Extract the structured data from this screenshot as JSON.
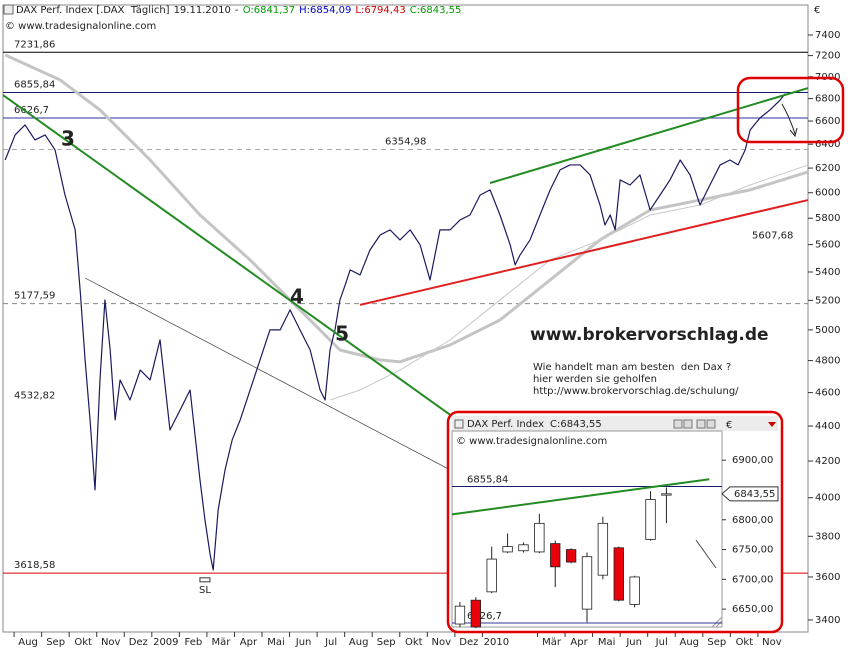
{
  "chart_data": [
    {
      "type": "line",
      "title": "DAX Perf. Index [.DAX  Täglich]",
      "date": "19.11.2010",
      "separator": "-",
      "open": "O:6841,37",
      "high": "H:6854,09",
      "low": "L:6794,43",
      "close": "C:6843,55",
      "source": "© www.tradesignalonline.com",
      "currency": "€",
      "log": true,
      "grid": false,
      "ylim": [
        3346,
        7701
      ],
      "yticks": [
        3400,
        3600,
        3800,
        4000,
        4200,
        4400,
        4600,
        4800,
        5000,
        5200,
        5400,
        5600,
        5800,
        6000,
        6200,
        6400,
        6600,
        6800,
        7000,
        7200,
        7400
      ],
      "xlim": [
        -0.91,
        28.31
      ],
      "xticks": [
        {
          "value": 0,
          "label": "Aug"
        },
        {
          "value": 1,
          "label": "Sep"
        },
        {
          "value": 2,
          "label": "Okt"
        },
        {
          "value": 3,
          "label": "Nov"
        },
        {
          "value": 4,
          "label": "Dez"
        },
        {
          "value": 5,
          "label": "2009"
        },
        {
          "value": 6,
          "label": "Feb"
        },
        {
          "value": 7,
          "label": "Mär"
        },
        {
          "value": 8,
          "label": "Apr"
        },
        {
          "value": 9,
          "label": "Mai"
        },
        {
          "value": 10,
          "label": "Jun"
        },
        {
          "value": 11,
          "label": "Jul"
        },
        {
          "value": 12,
          "label": "Aug"
        },
        {
          "value": 13,
          "label": "Sep"
        },
        {
          "value": 14,
          "label": "Okt"
        },
        {
          "value": 15,
          "label": "Nov"
        },
        {
          "value": 16,
          "label": "Dez"
        },
        {
          "value": 17,
          "label": "2010"
        },
        {
          "value": 19,
          "label": "Mär"
        },
        {
          "value": 20,
          "label": "Apr"
        },
        {
          "value": 21,
          "label": "Mai"
        },
        {
          "value": 22,
          "label": "Jun"
        },
        {
          "value": 23,
          "label": "Jul"
        },
        {
          "value": 24,
          "label": "Aug"
        },
        {
          "value": 25,
          "label": "Sep"
        },
        {
          "value": 26,
          "label": "Okt"
        },
        {
          "value": 27,
          "label": "Nov"
        }
      ],
      "series": [
        {
          "color": "#1a1a60",
          "width": 1.2,
          "x": [
            -0.83,
            -0.47,
            -0.11,
            0.25,
            0.62,
            0.98,
            1.34,
            1.71,
            1.89,
            2.07,
            2.25,
            2.43,
            2.61,
            2.79,
            2.98,
            3.16,
            3.34,
            3.7,
            4.07,
            4.43,
            4.79,
            5.15,
            5.52,
            5.88,
            6.24,
            6.42,
            6.61,
            6.72,
            6.9,
            7.15,
            7.41,
            7.7,
            8.06,
            8.42,
            8.78,
            9.15,
            9.51,
            9.87,
            10.24,
            10.6,
            10.78,
            10.96,
            11.14,
            11.32,
            11.51,
            11.69,
            12.05,
            12.41,
            12.78,
            13.14,
            13.5,
            13.87,
            14.23,
            14.59,
            14.95,
            15.32,
            15.68,
            16.04,
            16.41,
            16.77,
            17.13,
            17.5,
            17.68,
            17.86,
            18.22,
            18.58,
            18.95,
            19.31,
            19.67,
            20.04,
            20.4,
            20.76,
            20.94,
            21.13,
            21.31,
            21.49,
            21.85,
            22.21,
            22.58,
            22.94,
            23.3,
            23.67,
            24.03,
            24.39,
            24.75,
            25.12,
            25.48,
            25.77,
            26.03,
            26.21,
            26.57,
            26.93,
            27.3,
            27.48
          ],
          "values": [
            6267,
            6479,
            6566,
            6436,
            6479,
            6351,
            5982,
            5711,
            5272,
            4804,
            4436,
            4042,
            4678,
            5203,
            4868,
            4436,
            4678,
            4555,
            4740,
            4678,
            4934,
            4377,
            4495,
            4616,
            4096,
            3884,
            3708,
            3634,
            3936,
            4151,
            4320,
            4436,
            4616,
            4804,
            5000,
            5000,
            5135,
            5000,
            4868,
            4616,
            4555,
            4868,
            5000,
            5203,
            5307,
            5415,
            5379,
            5560,
            5672,
            5711,
            5635,
            5711,
            5598,
            5343,
            5711,
            5711,
            5787,
            5825,
            5982,
            6023,
            5825,
            5598,
            5451,
            5524,
            5635,
            5825,
            6023,
            6185,
            6226,
            6226,
            6144,
            5903,
            5748,
            5825,
            5711,
            6103,
            6062,
            6144,
            5864,
            5982,
            6103,
            6267,
            6144,
            5903,
            6062,
            6226,
            6267,
            6226,
            6351,
            6522,
            6628,
            6698,
            6787,
            6844
          ]
        },
        {
          "color": "#c4c4c4",
          "width": 3,
          "x": [
            -0.83,
            1.16,
            2.61,
            4.43,
            6.24,
            8.06,
            9.87,
            11.32,
            12.78,
            13.5,
            15.32,
            17.13,
            18.95,
            20.76,
            22.58,
            24.39,
            26.21,
            28.31
          ],
          "values": [
            7206,
            6971,
            6698,
            6267,
            5825,
            5487,
            5135,
            4868,
            4804,
            4792,
            4901,
            5066,
            5343,
            5635,
            5864,
            5942,
            6023,
            6168
          ]
        },
        {
          "color": "#c8c8c8",
          "width": 1,
          "x": [
            10.96,
            12.05,
            13.5,
            15.32,
            17.13,
            18.95,
            20.76,
            22.58,
            24.39,
            26.21,
            28.31
          ],
          "values": [
            4555,
            4616,
            4740,
            4934,
            5203,
            5487,
            5635,
            5825,
            5903,
            6062,
            6226
          ]
        }
      ],
      "levels": [
        {
          "value": 7231.86,
          "label": "7231,86",
          "color": "#000000",
          "line": true,
          "dash": false
        },
        {
          "value": 6855.84,
          "label": "6855,84",
          "color": "#1b1b6b",
          "line": true,
          "dash": false
        },
        {
          "value": 6626.7,
          "label": "6626,7",
          "color": "#3030a0",
          "line": true,
          "dash": false
        },
        {
          "value": 6354.98,
          "label": "6354,98",
          "color": "#aaaaaa",
          "line": true,
          "dash": true
        },
        {
          "value": 5607.68,
          "label": "5607,68",
          "color": "#bbbbbb",
          "line": false,
          "dash": true
        },
        {
          "value": 5177.59,
          "label": "5177,59",
          "color": "#888888",
          "line": true,
          "dash": true
        },
        {
          "value": 4532.82,
          "label": "4532,82",
          "color": "#999999",
          "line": false,
          "dash": false
        },
        {
          "value": 3618.58,
          "label": "3618,58",
          "color": "#dd0000",
          "line": true,
          "dash": false
        }
      ],
      "trendlines": [
        {
          "x": [
            -0.91,
            15.32
          ],
          "values": [
            6832,
            4466
          ],
          "color": "#228b22",
          "width": 2
        },
        {
          "x": [
            16.77,
            28.31
          ],
          "values": [
            6078,
            6896
          ],
          "color": "#228b22",
          "width": 2
        },
        {
          "x": [
            12.05,
            28.31
          ],
          "values": [
            5169,
            5942
          ],
          "color": "#e02020",
          "width": 2
        },
        {
          "x": [
            2.07,
            15.32
          ],
          "values": [
            5357,
            4151
          ],
          "color": "#333333",
          "width": 0.7
        }
      ],
      "waves": [
        {
          "label": "3",
          "x": 1.45,
          "value": 6436
        },
        {
          "label": "4",
          "x": 9.76,
          "value": 5217
        },
        {
          "label": "5",
          "x": 11.4,
          "value": 4966
        }
      ],
      "stop": {
        "label": "SL",
        "x": 6.42,
        "value": 3539
      },
      "promo": {
        "site": "www.brokervorschlag.de",
        "lines": [
          "Wie handelt man am besten  den Dax ?",
          "hier werden sie geholfen",
          "http://www.brokervorschlag.de/schulung/"
        ]
      }
    },
    {
      "type": "candlestick",
      "title": "DAX Perf. Index",
      "close_label": "C:6843,55",
      "source": "© www.tradesignalonline.com",
      "currency": "€",
      "ylim": [
        6620,
        6949
      ],
      "yticks": [
        {
          "value": 6650,
          "label": "6650,00"
        },
        {
          "value": 6700,
          "label": "6700,00"
        },
        {
          "value": 6750,
          "label": "6750,00"
        },
        {
          "value": 6800,
          "label": "6800,00"
        },
        {
          "value": 6900,
          "label": "6900,00"
        }
      ],
      "xlim": [
        -0.5,
        16.5
      ],
      "open": [
        6625,
        6665,
        6679,
        6746,
        6748,
        6746,
        6760,
        6750,
        6650,
        6707,
        6753,
        6658,
        6767,
        6841.37
      ],
      "high": [
        6662,
        6670,
        6755,
        6777,
        6762,
        6810,
        6765,
        6752,
        6745,
        6805,
        6755,
        6706,
        6848,
        6854.09
      ],
      "low": [
        6620,
        6618,
        6677,
        6744,
        6745,
        6744,
        6687,
        6727,
        6628,
        6700,
        6663,
        6653,
        6765,
        6794.43
      ],
      "close": [
        6655,
        6620,
        6734,
        6755,
        6758,
        6794,
        6721,
        6729,
        6738,
        6794,
        6665,
        6704,
        6834,
        6843.55
      ],
      "up_color": "#ffffff",
      "down_color": "#e8000b",
      "last": {
        "value": 6843.55,
        "label": "6843,55"
      },
      "levels": [
        {
          "value": 6855.84,
          "label": "6855,84",
          "color": "#1b1b6b"
        },
        {
          "value": 6626.7,
          "label": "6626,7",
          "color": "#3030a0"
        }
      ],
      "trendlines": [
        {
          "x": [
            -0.5,
            15.7
          ],
          "values": [
            6809,
            6868
          ],
          "color": "#228b22",
          "width": 2
        }
      ]
    }
  ]
}
